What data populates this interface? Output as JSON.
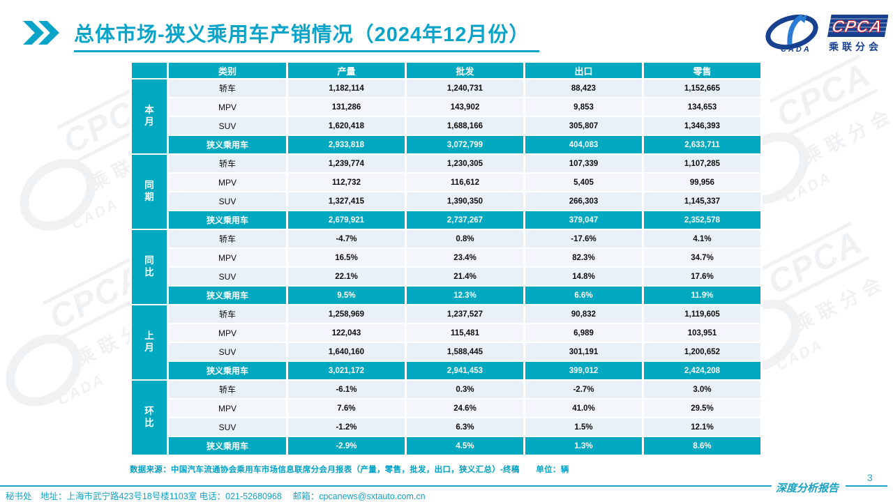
{
  "page": {
    "title": "总体市场-狭义乘用车产销情况（2024年12月份）",
    "page_number": "3",
    "report_type_label": "深度分析报告",
    "source_note": "数据来源：中国汽车流通协会乘用车市场信息联席分会月报表（产量，零售，批发，出口，狭义汇总）-终稿　　单位：辆",
    "secretariat": "秘书处　地址：上海市武宁路423号18号楼1103室 电话：021-52680968　 邮箱：cpcanews@sxtauto.com.cn"
  },
  "logo": {
    "cpca": "CPCA",
    "cada": "CADA",
    "subtitle": "乘联分会"
  },
  "watermark": {
    "cpca": "CPCA",
    "cada": "CADA",
    "subtitle": "乘联分会"
  },
  "colors": {
    "accent": "#0ba4c9",
    "table_teal": "#00a8c0",
    "row_odd": "#eaf0f8",
    "row_even": "#f3f6fb",
    "logo_navy": "#17418f",
    "logo_red": "#cf2333"
  },
  "table": {
    "headers": [
      "类别",
      "产量",
      "批发",
      "出口",
      "零售"
    ],
    "sections": [
      {
        "group": "本月",
        "rows": [
          [
            "轿车",
            "1,182,114",
            "1,240,731",
            "88,423",
            "1,152,665"
          ],
          [
            "MPV",
            "131,286",
            "143,902",
            "9,853",
            "134,653"
          ],
          [
            "SUV",
            "1,620,418",
            "1,688,166",
            "305,807",
            "1,346,393"
          ]
        ],
        "summary": [
          "狭义乘用车",
          "2,933,818",
          "3,072,799",
          "404,083",
          "2,633,711"
        ]
      },
      {
        "group": "同期",
        "rows": [
          [
            "轿车",
            "1,239,774",
            "1,230,305",
            "107,339",
            "1,107,285"
          ],
          [
            "MPV",
            "112,732",
            "116,612",
            "5,405",
            "99,956"
          ],
          [
            "SUV",
            "1,327,415",
            "1,390,350",
            "266,303",
            "1,145,337"
          ]
        ],
        "summary": [
          "狭义乘用车",
          "2,679,921",
          "2,737,267",
          "379,047",
          "2,352,578"
        ]
      },
      {
        "group": "同比",
        "rows": [
          [
            "轿车",
            "-4.7%",
            "0.8%",
            "-17.6%",
            "4.1%"
          ],
          [
            "MPV",
            "16.5%",
            "23.4%",
            "82.3%",
            "34.7%"
          ],
          [
            "SUV",
            "22.1%",
            "21.4%",
            "14.8%",
            "17.6%"
          ]
        ],
        "summary": [
          "狭义乘用车",
          "9.5%",
          "12.3%",
          "6.6%",
          "11.9%"
        ]
      },
      {
        "group": "上月",
        "rows": [
          [
            "轿车",
            "1,258,969",
            "1,237,527",
            "90,832",
            "1,119,605"
          ],
          [
            "MPV",
            "122,043",
            "115,481",
            "6,989",
            "103,951"
          ],
          [
            "SUV",
            "1,640,160",
            "1,588,445",
            "301,191",
            "1,200,652"
          ]
        ],
        "summary": [
          "狭义乘用车",
          "3,021,172",
          "2,941,453",
          "399,012",
          "2,424,208"
        ]
      },
      {
        "group": "环比",
        "rows": [
          [
            "轿车",
            "-6.1%",
            "0.3%",
            "-2.7%",
            "3.0%"
          ],
          [
            "MPV",
            "7.6%",
            "24.6%",
            "41.0%",
            "29.5%"
          ],
          [
            "SUV",
            "-1.2%",
            "6.3%",
            "1.5%",
            "12.1%"
          ]
        ],
        "summary": [
          "狭义乘用车",
          "-2.9%",
          "4.5%",
          "1.3%",
          "8.6%"
        ]
      }
    ]
  }
}
